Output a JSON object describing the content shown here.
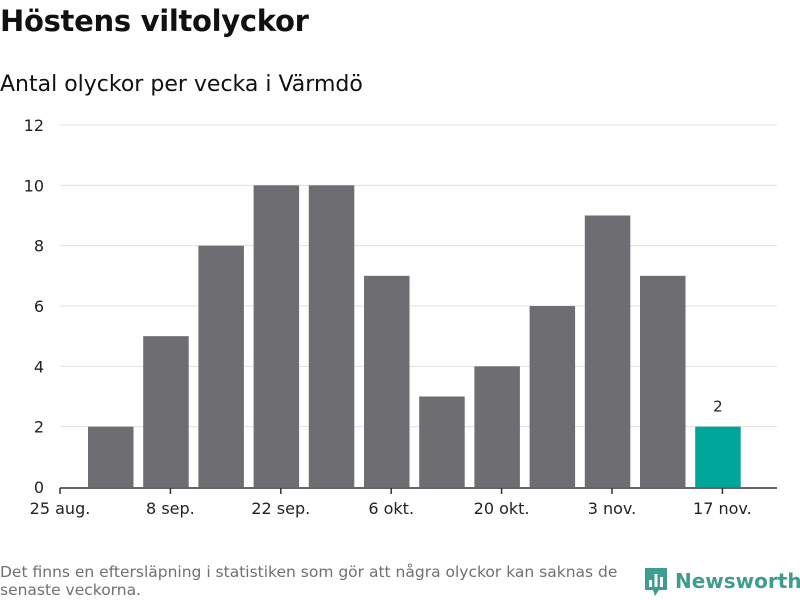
{
  "title": "Höstens viltolyckor",
  "subtitle": "Antal olyckor per vecka i Värmdö",
  "footnote": "Det finns en eftersläpning i statistiken som gör att några olyckor kan saknas de senaste veckorna.",
  "brand": "Newsworthy",
  "colors": {
    "bar": "#6e6d72",
    "highlight": "#00a59a",
    "grid": "#e0e0e0",
    "axis": "#333333",
    "brand": "#3f9c8f"
  },
  "chart_data": {
    "type": "bar",
    "title": "Höstens viltolyckor",
    "subtitle": "Antal olyckor per vecka i Värmdö",
    "xlabel": "",
    "ylabel": "",
    "ylim": [
      0,
      12
    ],
    "yticks": [
      0,
      2,
      4,
      6,
      8,
      10,
      12
    ],
    "grid": true,
    "x_tick_labels": [
      "25 aug.",
      "8 sep.",
      "22 sep.",
      "6 okt.",
      "20 okt.",
      "3 nov.",
      "17 nov."
    ],
    "values": [
      2,
      5,
      8,
      10,
      10,
      7,
      3,
      4,
      6,
      9,
      7,
      2
    ],
    "highlight_index": 11,
    "data_labels": [
      {
        "index": 11,
        "text": "2"
      }
    ]
  }
}
